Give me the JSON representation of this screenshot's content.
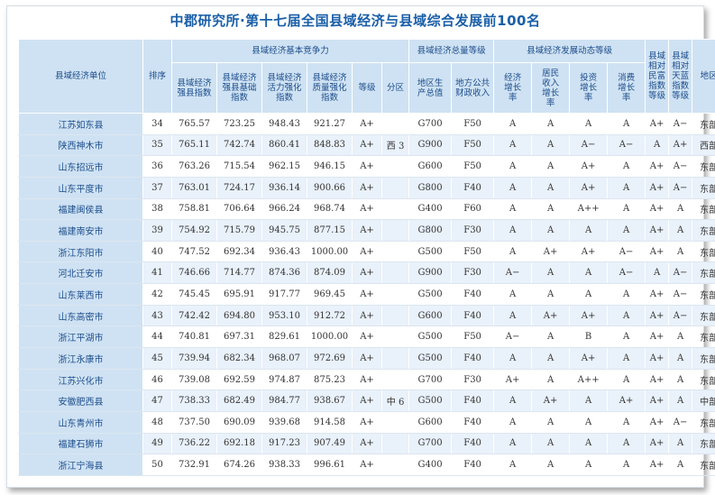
{
  "title": "中郡研究所·第十七届全国县域经济与县域综合发展前100名",
  "headers": {
    "unit": "县域经济单位",
    "rank": "排序",
    "group_competitiveness": "县域经济基本竞争力",
    "strong_index": "县域经济强县指数",
    "base_index": "县域经济强县基础指数",
    "vitality_index": "县域经济活力强化指数",
    "quality_index": "县域经济质量强化指数",
    "grade": "等级",
    "subzone": "分区",
    "group_total": "县域经济总量等级",
    "gdp_total": "地区生产总值",
    "fiscal_income": "地方公共财政收入",
    "group_dynamic": "县域经济发展动态等级",
    "econ_growth": "经济增长率",
    "resident_income": "居民收入增长率",
    "investment": "投资增长率",
    "consumption": "消费增长率",
    "wealth_grade": "县域相对民富指数等级",
    "blue_sky_grade": "县域相对天蓝指数等级",
    "region": "地区"
  },
  "rows": [
    {
      "name": "江苏如东县",
      "rank": "34",
      "strong": "765.57",
      "base": "723.25",
      "vitality": "948.43",
      "quality": "921.27",
      "grade": "A+",
      "subzone": "",
      "gdp": "G700",
      "fiscal": "F50",
      "econ": "A",
      "income": "A",
      "invest": "A",
      "consume": "A",
      "wealth": "A+",
      "sky": "A−",
      "region": "东部"
    },
    {
      "name": "陕西神木市",
      "rank": "35",
      "strong": "765.11",
      "base": "742.74",
      "vitality": "860.41",
      "quality": "848.83",
      "grade": "A+",
      "subzone": "西 3",
      "gdp": "G900",
      "fiscal": "F50",
      "econ": "A",
      "income": "A",
      "invest": "A−",
      "consume": "A−",
      "wealth": "A",
      "sky": "A+",
      "region": "西部"
    },
    {
      "name": "山东招远市",
      "rank": "36",
      "strong": "763.26",
      "base": "715.54",
      "vitality": "962.15",
      "quality": "946.15",
      "grade": "A+",
      "subzone": "",
      "gdp": "G600",
      "fiscal": "F50",
      "econ": "A",
      "income": "A",
      "invest": "A+",
      "consume": "A",
      "wealth": "A+",
      "sky": "A−",
      "region": "东部"
    },
    {
      "name": "山东平度市",
      "rank": "37",
      "strong": "763.01",
      "base": "724.17",
      "vitality": "936.14",
      "quality": "900.66",
      "grade": "A+",
      "subzone": "",
      "gdp": "G800",
      "fiscal": "F40",
      "econ": "A",
      "income": "A",
      "invest": "A+",
      "consume": "A",
      "wealth": "A+",
      "sky": "A−",
      "region": "东部"
    },
    {
      "name": "福建闽侯县",
      "rank": "38",
      "strong": "758.81",
      "base": "706.64",
      "vitality": "966.24",
      "quality": "968.74",
      "grade": "A+",
      "subzone": "",
      "gdp": "G400",
      "fiscal": "F60",
      "econ": "A",
      "income": "A",
      "invest": "A++",
      "consume": "A",
      "wealth": "A+",
      "sky": "A",
      "region": "东部"
    },
    {
      "name": "福建南安市",
      "rank": "39",
      "strong": "754.92",
      "base": "715.79",
      "vitality": "945.75",
      "quality": "877.15",
      "grade": "A+",
      "subzone": "",
      "gdp": "G800",
      "fiscal": "F30",
      "econ": "A",
      "income": "A",
      "invest": "A",
      "consume": "A",
      "wealth": "A+",
      "sky": "A",
      "region": "东部"
    },
    {
      "name": "浙江东阳市",
      "rank": "40",
      "strong": "747.52",
      "base": "692.34",
      "vitality": "936.43",
      "quality": "1000.00",
      "grade": "A+",
      "subzone": "",
      "gdp": "G500",
      "fiscal": "F50",
      "econ": "A",
      "income": "A+",
      "invest": "A+",
      "consume": "A−",
      "wealth": "A+",
      "sky": "A",
      "region": "东部"
    },
    {
      "name": "河北迁安市",
      "rank": "41",
      "strong": "746.66",
      "base": "714.77",
      "vitality": "874.36",
      "quality": "874.09",
      "grade": "A+",
      "subzone": "",
      "gdp": "G900",
      "fiscal": "F30",
      "econ": "A−",
      "income": "A",
      "invest": "A",
      "consume": "A−",
      "wealth": "A",
      "sky": "A−",
      "region": "东部"
    },
    {
      "name": "山东莱西市",
      "rank": "42",
      "strong": "745.45",
      "base": "695.91",
      "vitality": "917.77",
      "quality": "969.45",
      "grade": "A+",
      "subzone": "",
      "gdp": "G500",
      "fiscal": "F40",
      "econ": "A",
      "income": "A",
      "invest": "A",
      "consume": "A",
      "wealth": "A+",
      "sky": "A−",
      "region": "东部"
    },
    {
      "name": "山东高密市",
      "rank": "43",
      "strong": "742.42",
      "base": "694.80",
      "vitality": "953.10",
      "quality": "912.72",
      "grade": "A+",
      "subzone": "",
      "gdp": "G600",
      "fiscal": "F40",
      "econ": "A",
      "income": "A+",
      "invest": "A+",
      "consume": "A",
      "wealth": "A+",
      "sky": "A−",
      "region": "东部"
    },
    {
      "name": "浙江平湖市",
      "rank": "44",
      "strong": "740.81",
      "base": "697.31",
      "vitality": "829.61",
      "quality": "1000.00",
      "grade": "A+",
      "subzone": "",
      "gdp": "G500",
      "fiscal": "F50",
      "econ": "A−",
      "income": "A",
      "invest": "B",
      "consume": "A",
      "wealth": "A+",
      "sky": "A",
      "region": "东部"
    },
    {
      "name": "浙江永康市",
      "rank": "45",
      "strong": "739.94",
      "base": "682.34",
      "vitality": "968.07",
      "quality": "972.69",
      "grade": "A+",
      "subzone": "",
      "gdp": "G500",
      "fiscal": "F40",
      "econ": "A",
      "income": "A",
      "invest": "A+",
      "consume": "A",
      "wealth": "A+",
      "sky": "A",
      "region": "东部"
    },
    {
      "name": "江苏兴化市",
      "rank": "46",
      "strong": "739.08",
      "base": "692.59",
      "vitality": "974.87",
      "quality": "875.23",
      "grade": "A+",
      "subzone": "",
      "gdp": "G700",
      "fiscal": "F30",
      "econ": "A+",
      "income": "A",
      "invest": "A++",
      "consume": "A",
      "wealth": "A+",
      "sky": "A",
      "region": "东部"
    },
    {
      "name": "安徽肥西县",
      "rank": "47",
      "strong": "738.33",
      "base": "682.49",
      "vitality": "984.77",
      "quality": "938.67",
      "grade": "A+",
      "subzone": "中 6",
      "gdp": "G500",
      "fiscal": "F40",
      "econ": "A",
      "income": "A+",
      "invest": "A",
      "consume": "A+",
      "wealth": "A+",
      "sky": "A",
      "region": "中部"
    },
    {
      "name": "山东青州市",
      "rank": "48",
      "strong": "737.50",
      "base": "690.09",
      "vitality": "939.68",
      "quality": "914.58",
      "grade": "A+",
      "subzone": "",
      "gdp": "G600",
      "fiscal": "F40",
      "econ": "A",
      "income": "A",
      "invest": "A",
      "consume": "A",
      "wealth": "A+",
      "sky": "A−",
      "region": "东部"
    },
    {
      "name": "福建石狮市",
      "rank": "49",
      "strong": "736.22",
      "base": "692.18",
      "vitality": "917.23",
      "quality": "907.49",
      "grade": "A+",
      "subzone": "",
      "gdp": "G700",
      "fiscal": "F40",
      "econ": "A",
      "income": "A",
      "invest": "A",
      "consume": "A",
      "wealth": "A+",
      "sky": "A",
      "region": "东部"
    },
    {
      "name": "浙江宁海县",
      "rank": "50",
      "strong": "732.91",
      "base": "674.26",
      "vitality": "938.33",
      "quality": "996.61",
      "grade": "A+",
      "subzone": "",
      "gdp": "G400",
      "fiscal": "F40",
      "econ": "A",
      "income": "A",
      "invest": "A",
      "consume": "A",
      "wealth": "A+",
      "sky": "A",
      "region": "东部"
    }
  ]
}
